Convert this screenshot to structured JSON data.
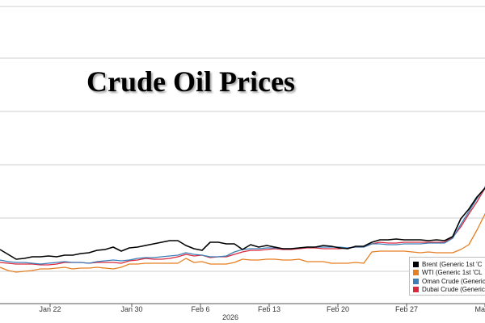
{
  "chart_data": {
    "type": "line",
    "title": "Crude Oil Prices",
    "xlabel": "2026",
    "ylabel": "",
    "x_tick_labels": [
      "Jan 22",
      "Jan 30",
      "Feb 6",
      "Feb 13",
      "Feb 20",
      "Feb 27",
      "Ma"
    ],
    "grid": {
      "horizontal": true,
      "vertical": false
    },
    "legend_position": "bottom-right",
    "series": [
      {
        "name": "Brent (Generic 1st 'C",
        "color": "#000000",
        "values": [
          309,
          315,
          321,
          320,
          318,
          318,
          317,
          318,
          316,
          316,
          314,
          313,
          310,
          309,
          306,
          311,
          307,
          306,
          304,
          302,
          300,
          298,
          298,
          304,
          308,
          310,
          300,
          300,
          302,
          302,
          309,
          303,
          306,
          304,
          306,
          308,
          308,
          307,
          306,
          306,
          304,
          305,
          307,
          308,
          305,
          305,
          300,
          297,
          297,
          296,
          297,
          297,
          297,
          298,
          297,
          298,
          293,
          271,
          259,
          244,
          233,
          210
        ]
      },
      {
        "name": "WTI (Generic 1st 'CL",
        "color": "#e67e22",
        "values": [
          331,
          335,
          337,
          336,
          335,
          333,
          333,
          332,
          331,
          333,
          332,
          332,
          331,
          332,
          333,
          331,
          327,
          327,
          326,
          326,
          326,
          326,
          326,
          320,
          325,
          324,
          327,
          327,
          327,
          325,
          321,
          322,
          322,
          321,
          321,
          322,
          322,
          321,
          324,
          324,
          324,
          326,
          326,
          326,
          325,
          326,
          312,
          311,
          311,
          311,
          311,
          312,
          313,
          312,
          313,
          313,
          313,
          309,
          303,
          285,
          265,
          250,
          246,
          227
        ]
      },
      {
        "name": "Oman Crude (Generic",
        "color": "#3a7fb8",
        "values": [
          322,
          324,
          325,
          325,
          326,
          327,
          326,
          325,
          324,
          325,
          325,
          326,
          324,
          323,
          322,
          323,
          322,
          320,
          319,
          319,
          318,
          317,
          316,
          313,
          315,
          316,
          318,
          318,
          317,
          312,
          309,
          308,
          308,
          307,
          307,
          308,
          308,
          307,
          306,
          306,
          306,
          306,
          306,
          307,
          306,
          306,
          302,
          302,
          303,
          303,
          302,
          302,
          302,
          301,
          301,
          301,
          295,
          278,
          262,
          246,
          232,
          198,
          163
        ]
      },
      {
        "name": "Dubai Crude (Generic",
        "color": "#d9283c",
        "values": [
          325,
          326,
          327,
          327,
          327,
          328,
          328,
          327,
          325,
          325,
          325,
          326,
          325,
          325,
          325,
          326,
          323,
          322,
          320,
          321,
          321,
          320,
          318,
          315,
          317,
          316,
          319,
          318,
          318,
          315,
          312,
          310,
          310,
          309,
          308,
          309,
          309,
          308,
          307,
          307,
          308,
          308,
          308,
          307,
          306,
          306,
          302,
          300,
          301,
          301,
          300,
          300,
          300,
          300,
          300,
          300,
          294,
          281,
          265,
          250,
          233,
          210,
          188
        ]
      }
    ]
  }
}
